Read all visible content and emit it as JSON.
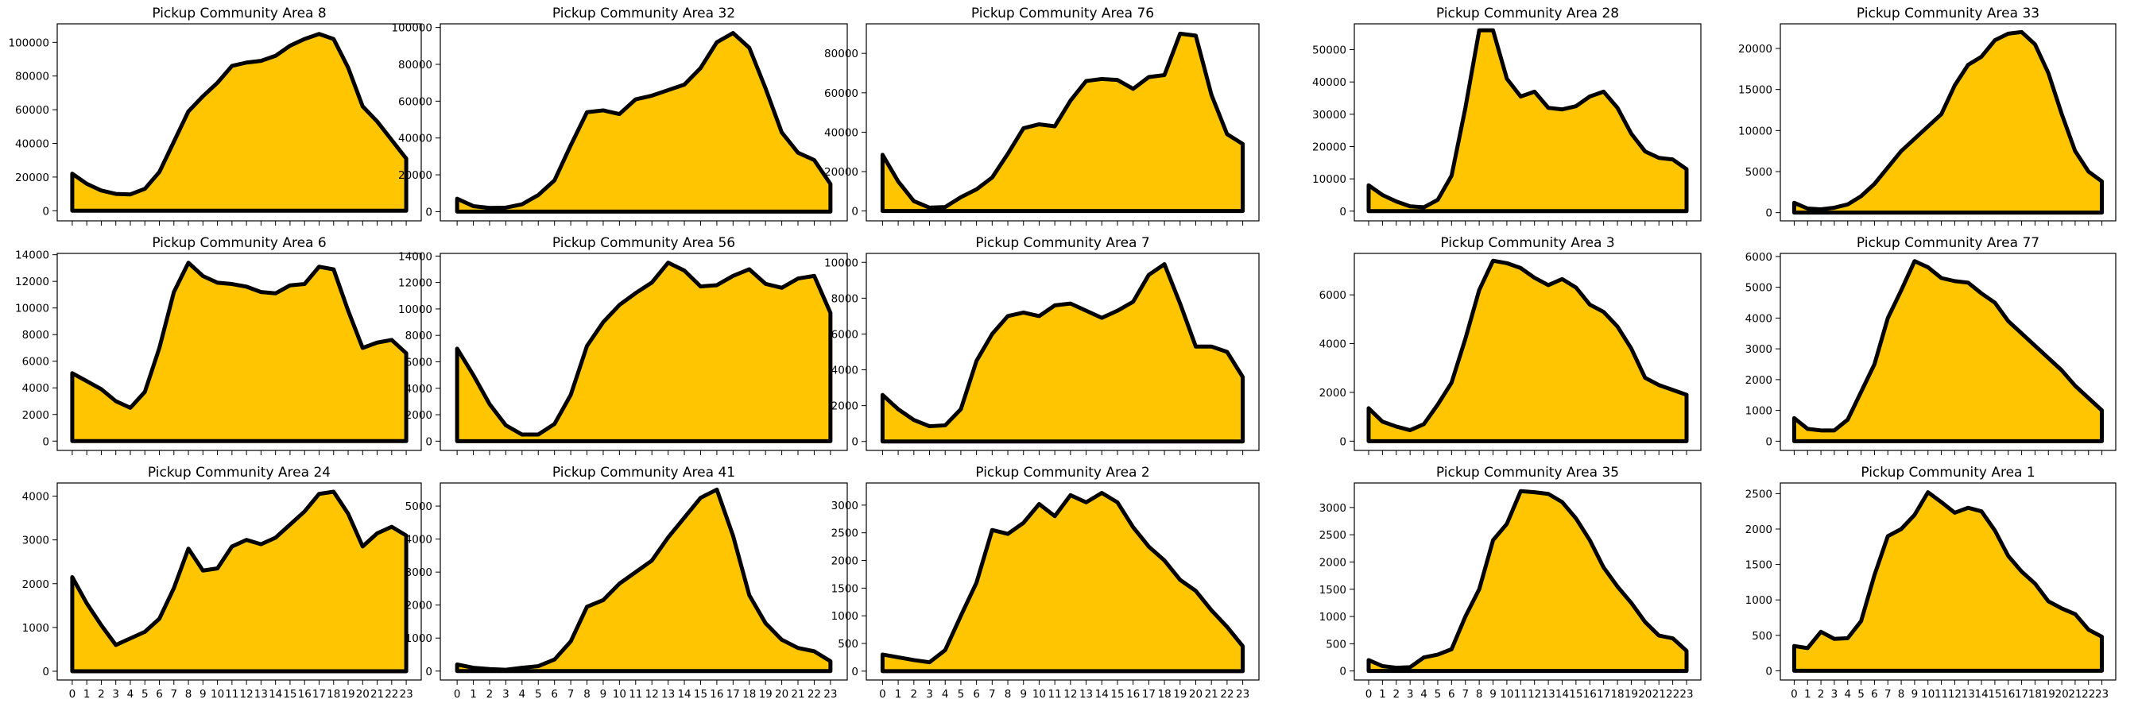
{
  "chart_data": {
    "type": "area",
    "x": [
      0,
      1,
      2,
      3,
      4,
      5,
      6,
      7,
      8,
      9,
      10,
      11,
      12,
      13,
      14,
      15,
      16,
      17,
      18,
      19,
      20,
      21,
      22,
      23
    ],
    "sharex": true,
    "fill_color": "#FFC600",
    "line_color": "#000000",
    "grid": false,
    "legend": "none",
    "panels": [
      {
        "title": "Pickup Community Area 8",
        "ylim": [
          -6000,
          111000
        ],
        "yticks": [
          0,
          20000,
          40000,
          60000,
          80000,
          100000
        ],
        "values": [
          22000,
          16000,
          12000,
          10000,
          9700,
          13000,
          23000,
          41000,
          59000,
          68000,
          76000,
          86000,
          88000,
          89000,
          92000,
          98000,
          102000,
          105000,
          102000,
          85000,
          62000,
          53000,
          42000,
          31000
        ]
      },
      {
        "title": "Pickup Community Area 32",
        "ylim": [
          -5000,
          102000
        ],
        "yticks": [
          0,
          20000,
          40000,
          60000,
          80000,
          100000
        ],
        "values": [
          7000,
          3000,
          2000,
          2200,
          4000,
          9000,
          17000,
          36000,
          54000,
          55000,
          53000,
          61000,
          63000,
          66000,
          69000,
          78000,
          92000,
          97000,
          89000,
          67000,
          43000,
          32000,
          28000,
          15000
        ]
      },
      {
        "title": "Pickup Community Area 76",
        "ylim": [
          -5000,
          95000
        ],
        "yticks": [
          0,
          20000,
          40000,
          60000,
          80000
        ],
        "values": [
          28500,
          15000,
          5000,
          1700,
          2000,
          7000,
          11000,
          17000,
          29000,
          42000,
          44000,
          43000,
          56000,
          66000,
          67000,
          66500,
          62000,
          68000,
          69000,
          90000,
          89000,
          59000,
          39000,
          34000
        ]
      },
      {
        "title": "Pickup Community Area 28",
        "ylim": [
          -3000,
          58000
        ],
        "yticks": [
          0,
          10000,
          20000,
          30000,
          40000,
          50000
        ],
        "values": [
          8000,
          5000,
          3000,
          1500,
          1200,
          3500,
          11000,
          32000,
          56000,
          56000,
          41000,
          35500,
          37000,
          32000,
          31500,
          32500,
          35500,
          37000,
          32000,
          24000,
          18500,
          16500,
          16000,
          13000
        ]
      },
      {
        "title": "Pickup Community Area 33",
        "ylim": [
          -1000,
          23000
        ],
        "yticks": [
          0,
          5000,
          10000,
          15000,
          20000
        ],
        "values": [
          1200,
          500,
          400,
          600,
          1000,
          2000,
          3500,
          5500,
          7500,
          9000,
          10500,
          12000,
          15500,
          18000,
          19000,
          21000,
          21800,
          22000,
          20500,
          17000,
          12000,
          7500,
          5000,
          3800
        ]
      },
      {
        "title": "Pickup Community Area 6",
        "ylim": [
          -700,
          14100
        ],
        "yticks": [
          0,
          2000,
          4000,
          6000,
          8000,
          10000,
          12000,
          14000
        ],
        "values": [
          5100,
          4500,
          3900,
          3000,
          2500,
          3700,
          7000,
          11200,
          13400,
          12400,
          11900,
          11800,
          11600,
          11200,
          11100,
          11700,
          11800,
          13100,
          12900,
          9800,
          7000,
          7400,
          7600,
          6600
        ]
      },
      {
        "title": "Pickup Community Area 56",
        "ylim": [
          -700,
          14200
        ],
        "yticks": [
          0,
          2000,
          4000,
          6000,
          8000,
          10000,
          12000,
          14000
        ],
        "values": [
          7000,
          5000,
          2800,
          1200,
          500,
          500,
          1300,
          3500,
          7200,
          9000,
          10300,
          11200,
          12000,
          13500,
          12900,
          11700,
          11800,
          12500,
          13000,
          11900,
          11600,
          12300,
          12500,
          9700
        ]
      },
      {
        "title": "Pickup Community Area 7",
        "ylim": [
          -500,
          10500
        ],
        "yticks": [
          0,
          2000,
          4000,
          6000,
          8000,
          10000
        ],
        "values": [
          2600,
          1800,
          1200,
          850,
          900,
          1800,
          4500,
          6000,
          7000,
          7200,
          7000,
          7600,
          7700,
          7300,
          6900,
          7300,
          7800,
          9300,
          9900,
          7700,
          5300,
          5300,
          5000,
          3600
        ]
      },
      {
        "title": "Pickup Community Area 3",
        "ylim": [
          -380,
          7700
        ],
        "yticks": [
          0,
          2000,
          4000,
          6000
        ],
        "values": [
          1350,
          800,
          600,
          450,
          700,
          1500,
          2400,
          4200,
          6200,
          7400,
          7300,
          7100,
          6700,
          6400,
          6650,
          6300,
          5600,
          5300,
          4700,
          3800,
          2600,
          2300,
          2100,
          1900
        ]
      },
      {
        "title": "Pickup Community Area 77",
        "ylim": [
          -300,
          6100
        ],
        "yticks": [
          0,
          1000,
          2000,
          3000,
          4000,
          5000,
          6000
        ],
        "values": [
          750,
          400,
          350,
          350,
          700,
          1600,
          2500,
          4000,
          4900,
          5850,
          5650,
          5300,
          5200,
          5150,
          4800,
          4500,
          3900,
          3500,
          3100,
          2700,
          2300,
          1800,
          1400,
          1000
        ]
      },
      {
        "title": "Pickup Community Area 24",
        "ylim": [
          -200,
          4300
        ],
        "yticks": [
          0,
          1000,
          2000,
          3000,
          4000
        ],
        "values": [
          2150,
          1550,
          1050,
          600,
          750,
          900,
          1200,
          1900,
          2800,
          2300,
          2350,
          2850,
          3000,
          2900,
          3050,
          3350,
          3650,
          4050,
          4100,
          3600,
          2850,
          3150,
          3300,
          3100
        ]
      },
      {
        "title": "Pickup Community Area 41",
        "ylim": [
          -270,
          5700
        ],
        "yticks": [
          0,
          1000,
          2000,
          3000,
          4000,
          5000
        ],
        "values": [
          200,
          100,
          60,
          40,
          100,
          150,
          350,
          900,
          1950,
          2150,
          2650,
          3000,
          3350,
          4050,
          4650,
          5250,
          5500,
          4100,
          2300,
          1450,
          950,
          700,
          600,
          300
        ]
      },
      {
        "title": "Pickup Community Area 2",
        "ylim": [
          -160,
          3400
        ],
        "yticks": [
          0,
          500,
          1000,
          1500,
          2000,
          2500,
          3000
        ],
        "values": [
          300,
          250,
          200,
          160,
          380,
          1000,
          1600,
          2550,
          2480,
          2680,
          3020,
          2800,
          3180,
          3050,
          3220,
          3050,
          2600,
          2250,
          2000,
          1650,
          1450,
          1100,
          800,
          450
        ]
      },
      {
        "title": "Pickup Community Area 35",
        "ylim": [
          -165,
          3450
        ],
        "yticks": [
          0,
          500,
          1000,
          1500,
          2000,
          2500,
          3000
        ],
        "values": [
          200,
          90,
          60,
          70,
          250,
          300,
          400,
          1000,
          1500,
          2400,
          2700,
          3300,
          3280,
          3250,
          3100,
          2800,
          2400,
          1900,
          1550,
          1250,
          900,
          650,
          600,
          370
        ]
      },
      {
        "title": "Pickup Community Area 1",
        "ylim": [
          -130,
          2650
        ],
        "yticks": [
          0,
          500,
          1000,
          1500,
          2000,
          2500
        ],
        "values": [
          350,
          320,
          550,
          450,
          460,
          700,
          1350,
          1900,
          2000,
          2200,
          2520,
          2380,
          2230,
          2300,
          2250,
          1980,
          1620,
          1400,
          1230,
          980,
          880,
          800,
          580,
          480
        ]
      }
    ]
  }
}
